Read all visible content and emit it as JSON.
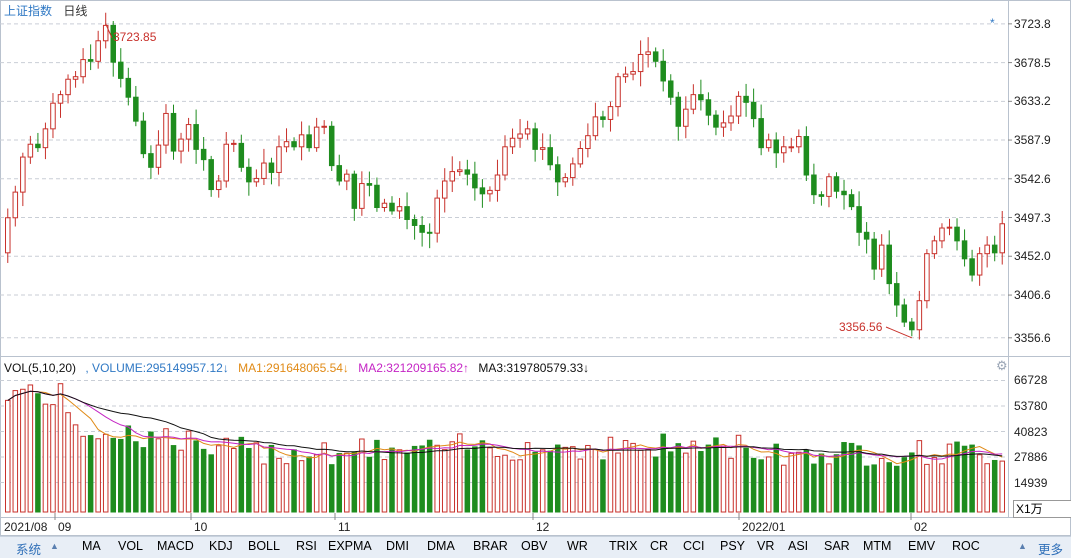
{
  "header": {
    "symbol": "上证指数",
    "period": "日线"
  },
  "price_axis": {
    "ticks": [
      "3723.8",
      "3678.5",
      "3633.2",
      "3587.9",
      "3542.6",
      "3497.3",
      "3452.0",
      "3406.6",
      "3356.6"
    ],
    "range": [
      3340,
      3740
    ]
  },
  "annotations": {
    "high_label": "3723.85",
    "low_label": "3356.56"
  },
  "volume_header": {
    "title": "VOL(5,10,20)",
    "volume": ", VOLUME:295149957.12↓",
    "ma1": "MA1:291648065.54↓",
    "ma2": "MA2:321209165.82↑",
    "ma3": "MA3:319780579.33↓"
  },
  "volume_axis": {
    "ticks": [
      "66728",
      "53780",
      "40823",
      "27886",
      "14939"
    ],
    "unit": "X1万"
  },
  "x_axis": {
    "labels": [
      "2021/08",
      "09",
      "10",
      "11",
      "12",
      "2022/01",
      "02"
    ]
  },
  "toolbar": {
    "system": "系统",
    "items": [
      "MA",
      "VOL",
      "MACD",
      "KDJ",
      "BOLL",
      "RSI",
      "EXPMA",
      "DMI",
      "DMA",
      "BRAR",
      "OBV",
      "WR",
      "TRIX",
      "CR",
      "CCI",
      "PSY",
      "VR",
      "ASI",
      "SAR",
      "MTM",
      "EMV",
      "ROC"
    ],
    "more": "更多"
  },
  "colors": {
    "up": "#c8312b",
    "down": "#1e8c1e",
    "ma1": "#e08a16",
    "ma2": "#c424c4",
    "ma3": "#111111",
    "grid": "#c9ced6",
    "axis_text": "#222222"
  },
  "chart_data": {
    "type": "candlestick",
    "series_price": {
      "open": [
        3456,
        3497,
        3527,
        3568,
        3583,
        3579,
        3601,
        3631,
        3641,
        3659,
        3662,
        3682,
        3680,
        3704,
        3722,
        3679,
        3660,
        3638,
        3610,
        3572,
        3556,
        3582,
        3619,
        3575,
        3589,
        3606,
        3577,
        3565,
        3530,
        3540,
        3583,
        3584,
        3556,
        3539,
        3543,
        3561,
        3550,
        3580,
        3586,
        3580,
        3594,
        3579,
        3603,
        3604,
        3558,
        3540,
        3548,
        3508,
        3537,
        3535,
        3509,
        3514,
        3505,
        3510,
        3495,
        3488,
        3480,
        3479,
        3520,
        3540,
        3551,
        3553,
        3548,
        3532,
        3525,
        3529,
        3547,
        3580,
        3590,
        3595,
        3601,
        3577,
        3579,
        3559,
        3539,
        3544,
        3560,
        3578,
        3593,
        3615,
        3612,
        3627,
        3662,
        3665,
        3668,
        3688,
        3691,
        3680,
        3657,
        3638,
        3604,
        3624,
        3641,
        3635,
        3617,
        3603,
        3608,
        3616,
        3639,
        3632,
        3613,
        3579,
        3588,
        3573,
        3580,
        3580,
        3592,
        3547,
        3524,
        3522,
        3545,
        3528,
        3524,
        3510,
        3480,
        3472,
        3437,
        3465,
        3420,
        3395,
        3375,
        3366,
        3400,
        3455,
        3470,
        3485,
        3486,
        3470,
        3449,
        3430,
        3455,
        3465,
        3456
      ],
      "close": [
        3497,
        3527,
        3568,
        3583,
        3579,
        3601,
        3631,
        3641,
        3659,
        3662,
        3682,
        3680,
        3704,
        3722,
        3679,
        3660,
        3638,
        3610,
        3572,
        3556,
        3582,
        3619,
        3575,
        3589,
        3606,
        3577,
        3565,
        3530,
        3540,
        3583,
        3584,
        3556,
        3539,
        3543,
        3561,
        3550,
        3580,
        3586,
        3580,
        3594,
        3579,
        3603,
        3604,
        3558,
        3540,
        3548,
        3508,
        3537,
        3535,
        3509,
        3514,
        3505,
        3510,
        3495,
        3488,
        3480,
        3479,
        3520,
        3540,
        3551,
        3553,
        3548,
        3532,
        3525,
        3529,
        3547,
        3580,
        3590,
        3595,
        3601,
        3577,
        3579,
        3559,
        3539,
        3544,
        3560,
        3578,
        3593,
        3615,
        3612,
        3627,
        3662,
        3665,
        3668,
        3688,
        3691,
        3680,
        3657,
        3638,
        3604,
        3624,
        3641,
        3635,
        3617,
        3603,
        3608,
        3616,
        3639,
        3632,
        3613,
        3579,
        3588,
        3573,
        3580,
        3580,
        3592,
        3547,
        3524,
        3522,
        3545,
        3528,
        3524,
        3510,
        3480,
        3472,
        3437,
        3465,
        3420,
        3395,
        3375,
        3366,
        3400,
        3455,
        3470,
        3485,
        3486,
        3470,
        3449,
        3430,
        3455,
        3465,
        3456,
        3490
      ]
    },
    "volume_ma_levels": {
      "ma1": 291648065.54,
      "ma2": 321209165.82,
      "ma3": 319780579.33
    }
  }
}
